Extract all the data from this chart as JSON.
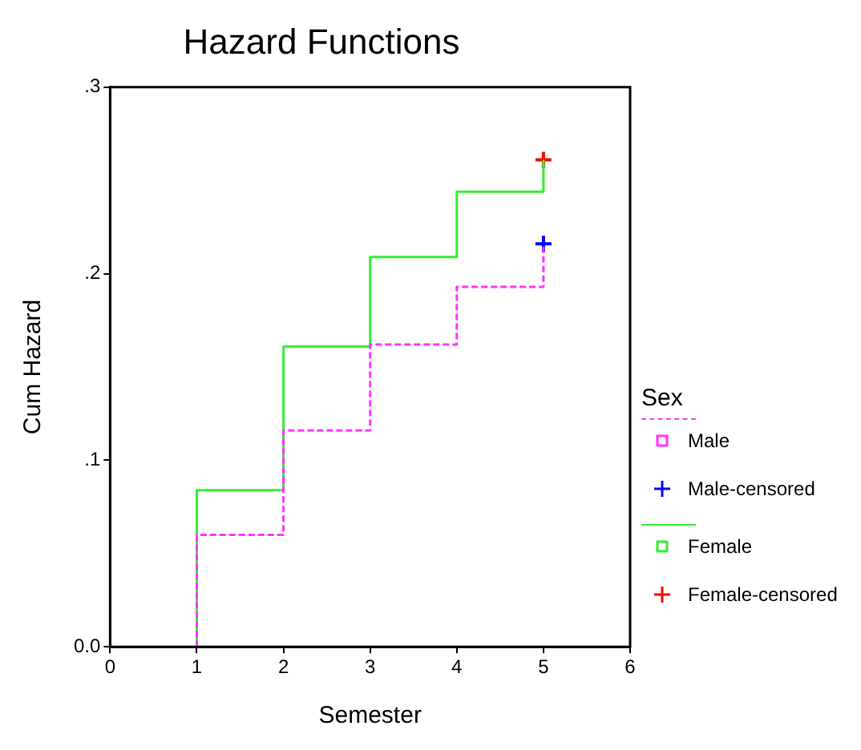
{
  "chart_data": {
    "type": "step",
    "title": "Hazard Functions",
    "xlabel": "Semester",
    "ylabel": "Cum Hazard",
    "legend_title": "Sex",
    "legend": "right",
    "xlim": [
      0,
      6
    ],
    "xticks": [
      0,
      1,
      2,
      3,
      4,
      5,
      6
    ],
    "ylim": [
      0,
      0.3
    ],
    "yticks": [
      {
        "value": 0,
        "label": "0.0"
      },
      {
        "value": 0.1,
        "label": ".1"
      },
      {
        "value": 0.2,
        "label": ".2"
      },
      {
        "value": 0.3,
        "label": ".3"
      }
    ],
    "grid": false,
    "series": [
      {
        "name": "Male",
        "type": "step",
        "color": "#ff33ff",
        "line_style": "dashed",
        "marker": "none",
        "x": [
          1,
          1,
          2,
          3,
          4,
          5
        ],
        "values": [
          0,
          0.06,
          0.116,
          0.162,
          0.193,
          0.216
        ]
      },
      {
        "name": "Male-censored",
        "type": "scatter",
        "color": "#0000ff",
        "marker": "cross",
        "x": [
          5
        ],
        "values": [
          0.216
        ]
      },
      {
        "name": "Female",
        "type": "step",
        "color": "#33ee33",
        "line_style": "solid",
        "marker": "none",
        "x": [
          1,
          1,
          2,
          3,
          4,
          5
        ],
        "values": [
          0,
          0.084,
          0.161,
          0.209,
          0.244,
          0.261
        ]
      },
      {
        "name": "Female-censored",
        "type": "scatter",
        "color": "#ff0000",
        "marker": "cross",
        "x": [
          5
        ],
        "values": [
          0.261
        ]
      }
    ]
  }
}
